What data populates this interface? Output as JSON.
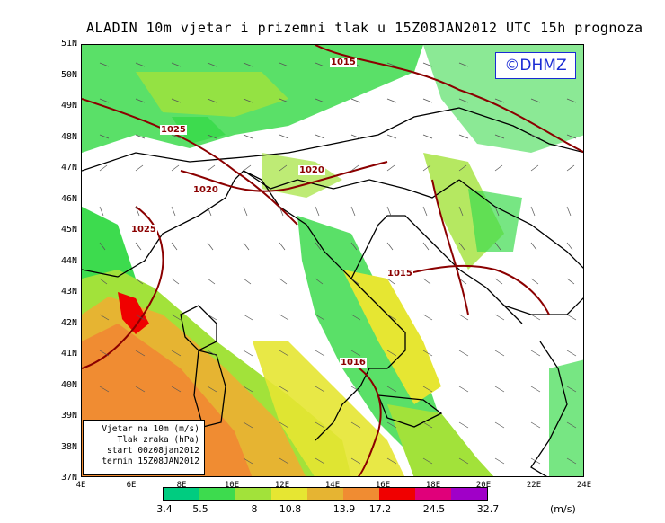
{
  "title": "ALADIN 10m vjetar i prizemni tlak u 15Z08JAN2012 UTC 15h prognoza",
  "logo": "©DHMZ",
  "lat_labels": [
    "51N",
    "50N",
    "49N",
    "48N",
    "47N",
    "46N",
    "45N",
    "44N",
    "43N",
    "42N",
    "41N",
    "40N",
    "39N",
    "38N",
    "37N"
  ],
  "lon_labels": [
    "4E",
    "6E",
    "8E",
    "10E",
    "12E",
    "14E",
    "16E",
    "18E",
    "20E",
    "22E",
    "24E"
  ],
  "info": {
    "line1": "Vjetar na 10m (m/s)",
    "line2": "Tlak zraka (hPa)",
    "line3": "start 00z08jan2012",
    "line4": "termin 15Z08JAN2012"
  },
  "isobars": [
    "1015",
    "1025",
    "1020",
    "1020",
    "1025",
    "1015",
    "1016"
  ],
  "legend": {
    "labels": [
      "3.4",
      "5.5",
      "8",
      "10.8",
      "13.9",
      "17.2",
      "24.5",
      "32.7"
    ],
    "colors": [
      "#00cc80",
      "#3ddb4e",
      "#a2e23a",
      "#e6e632",
      "#e6b432",
      "#f08c32",
      "#f00000",
      "#e0007a",
      "#a000c8"
    ],
    "unit": "(m/s)"
  },
  "colors": {
    "coast": "#000000",
    "isobar": "#8b0000",
    "logo": "#1a2bd4"
  }
}
